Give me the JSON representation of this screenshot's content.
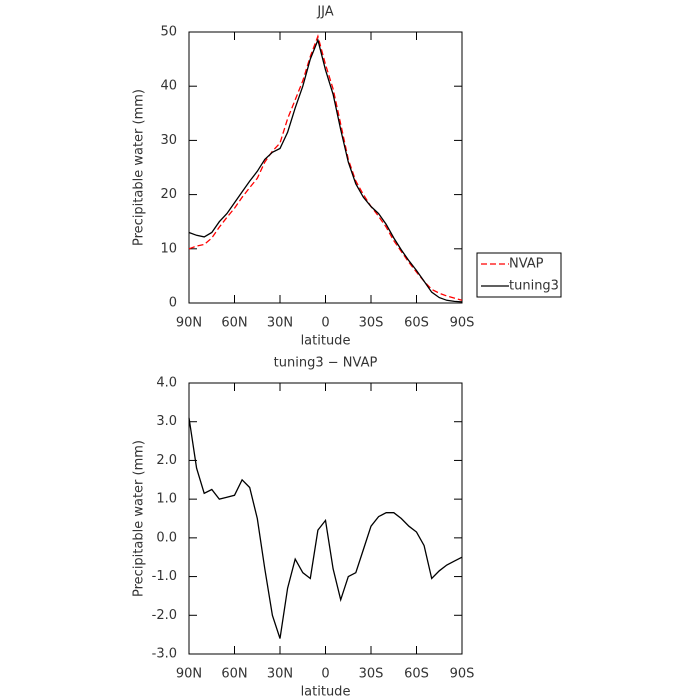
{
  "chart_data": [
    {
      "type": "line",
      "title": "JJA",
      "xlabel": "latitude",
      "ylabel": "Precipitable water (mm)",
      "x": [
        90,
        85,
        80,
        75,
        70,
        65,
        60,
        55,
        50,
        45,
        40,
        35,
        30,
        25,
        20,
        15,
        10,
        5,
        0,
        -5,
        -10,
        -15,
        -20,
        -25,
        -30,
        -35,
        -40,
        -45,
        -50,
        -55,
        -60,
        -65,
        -70,
        -75,
        -80,
        -85,
        -90
      ],
      "xlim": [
        90,
        -90
      ],
      "xticks": [
        {
          "value": 90,
          "label": "90N"
        },
        {
          "value": 60,
          "label": "60N"
        },
        {
          "value": 30,
          "label": "30N"
        },
        0,
        {
          "value": -30,
          "label": "30S"
        },
        {
          "value": -60,
          "label": "60S"
        },
        {
          "value": -90,
          "label": "90S"
        }
      ],
      "ylim": [
        0,
        50
      ],
      "yticks": [
        0,
        10,
        20,
        30,
        40,
        50
      ],
      "series": [
        {
          "name": "NVAP",
          "color": "#ff0000",
          "dashed": true,
          "values": [
            10,
            10.5,
            10.8,
            12,
            14,
            15.8,
            17.5,
            19.5,
            21.3,
            23,
            26,
            28,
            29.5,
            34,
            37.5,
            41,
            45.5,
            49.2,
            44,
            39.5,
            33,
            26.5,
            22.5,
            20,
            17.8,
            16,
            14,
            11.5,
            9.5,
            7.5,
            5.7,
            4,
            2.5,
            1.8,
            1.3,
            0.9,
            0.5
          ]
        },
        {
          "name": "tuning3",
          "color": "#000000",
          "dashed": false,
          "values": [
            13,
            12.5,
            12.2,
            13,
            15,
            16.5,
            18.5,
            20.5,
            22.5,
            24.3,
            26.5,
            27.8,
            28.5,
            31.5,
            36,
            40,
            45,
            48.5,
            43,
            38.5,
            32,
            26,
            22,
            19.5,
            17.8,
            16.5,
            14.5,
            12,
            9.8,
            7.8,
            6,
            4,
            2,
            1,
            0.5,
            0.3,
            0.2
          ]
        }
      ]
    },
    {
      "type": "line",
      "title": "tuning3 − NVAP",
      "xlabel": "latitude",
      "ylabel": "Precipitable water (mm)",
      "x": [
        90,
        85,
        80,
        75,
        70,
        65,
        60,
        55,
        50,
        45,
        40,
        35,
        30,
        25,
        20,
        15,
        10,
        5,
        0,
        -5,
        -10,
        -15,
        -20,
        -25,
        -30,
        -35,
        -40,
        -45,
        -50,
        -55,
        -60,
        -65,
        -70,
        -75,
        -80,
        -85,
        -90
      ],
      "xlim": [
        90,
        -90
      ],
      "xticks": [
        {
          "value": 90,
          "label": "90N"
        },
        {
          "value": 60,
          "label": "60N"
        },
        {
          "value": 30,
          "label": "30N"
        },
        0,
        {
          "value": -30,
          "label": "30S"
        },
        {
          "value": -60,
          "label": "60S"
        },
        {
          "value": -90,
          "label": "90S"
        }
      ],
      "ylim": [
        -3,
        4
      ],
      "yticks": [
        {
          "value": -3,
          "label": "-3.0"
        },
        {
          "value": -2,
          "label": "-2.0"
        },
        {
          "value": -1,
          "label": "-1.0"
        },
        {
          "value": 0,
          "label": "0.0"
        },
        {
          "value": 1,
          "label": "1.0"
        },
        {
          "value": 2,
          "label": "2.0"
        },
        {
          "value": 3,
          "label": "3.0"
        },
        {
          "value": 4,
          "label": "4.0"
        }
      ],
      "color": "#000000",
      "values": [
        3.1,
        1.8,
        1.15,
        1.25,
        1.0,
        1.05,
        1.1,
        1.5,
        1.3,
        0.5,
        -0.8,
        -2.0,
        -2.6,
        -1.3,
        -0.55,
        -0.9,
        -1.05,
        0.2,
        0.45,
        -0.8,
        -1.6,
        -1.0,
        -0.9,
        -0.3,
        0.3,
        0.55,
        0.65,
        0.65,
        0.5,
        0.3,
        0.15,
        -0.2,
        -1.05,
        -0.85,
        -0.7,
        -0.6,
        -0.5
      ]
    }
  ]
}
